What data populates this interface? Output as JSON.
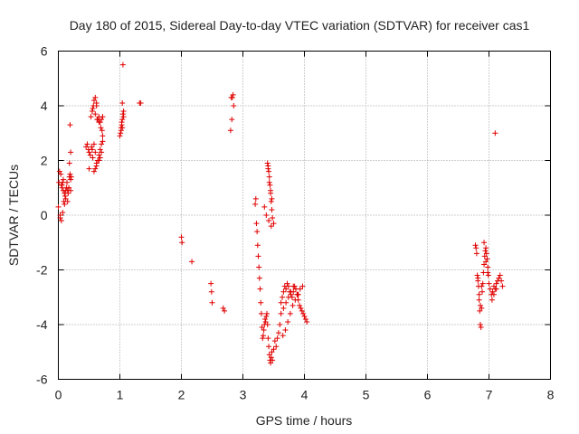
{
  "chart_data": {
    "type": "scatter",
    "title": "Day 180 of 2015, Sidereal Day-to-day VTEC variation (SDTVAR) for receiver cas1",
    "xlabel": "GPS time / hours",
    "ylabel": "SDTVAR / TECUs",
    "xlim": [
      0,
      8
    ],
    "ylim": [
      -6,
      6
    ],
    "x_ticks": [
      "0",
      "1",
      "2",
      "3",
      "4",
      "5",
      "6",
      "7",
      "8"
    ],
    "y_ticks": [
      "-6",
      "-4",
      "-2",
      "0",
      "2",
      "4",
      "6"
    ],
    "grid": true,
    "marker": "+",
    "color": "#e00000",
    "series": [
      {
        "name": "cas1",
        "x": [
          0.0,
          0.01,
          0.02,
          0.03,
          0.04,
          0.05,
          0.06,
          0.06,
          0.07,
          0.08,
          0.09,
          0.1,
          0.03,
          0.05,
          0.08,
          0.1,
          0.11,
          0.12,
          0.13,
          0.14,
          0.15,
          0.16,
          0.17,
          0.18,
          0.19,
          0.2,
          0.07,
          0.12,
          0.15,
          0.18,
          0.2,
          0.19,
          0.21,
          0.17,
          0.2,
          0.45,
          0.47,
          0.49,
          0.5,
          0.52,
          0.54,
          0.55,
          0.56,
          0.58,
          0.6,
          0.62,
          0.5,
          0.53,
          0.55,
          0.57,
          0.6,
          0.62,
          0.64,
          0.66,
          0.68,
          0.7,
          0.72,
          0.58,
          0.6,
          0.62,
          0.64,
          0.66,
          0.68,
          0.7,
          0.72,
          0.6,
          0.63,
          0.66,
          0.69,
          0.71,
          0.66,
          0.68,
          0.7,
          0.72,
          0.58,
          0.62,
          0.56,
          1.0,
          1.01,
          1.02,
          1.03,
          1.04,
          1.05,
          1.06,
          1.02,
          1.04,
          1.05,
          1.06,
          1.03,
          1.32,
          1.34,
          1.04,
          2.0,
          2.01,
          2.17,
          2.48,
          2.49,
          2.5,
          2.68,
          2.7,
          2.8,
          2.82,
          2.83,
          2.84,
          2.85,
          2.81,
          3.2,
          3.21,
          3.22,
          3.23,
          3.24,
          3.25,
          3.26,
          3.27,
          3.28,
          3.29,
          3.3,
          3.31,
          3.32,
          3.33,
          3.34,
          3.35,
          3.36,
          3.37,
          3.38,
          3.39,
          3.4,
          3.41,
          3.42,
          3.43,
          3.44,
          3.45,
          3.46,
          3.47,
          3.48,
          3.5,
          3.52,
          3.54,
          3.56,
          3.58,
          3.6,
          3.62,
          3.4,
          3.41,
          3.42,
          3.43,
          3.44,
          3.45,
          3.46,
          3.47,
          3.48,
          3.5,
          3.41,
          3.43,
          3.45,
          3.47,
          3.35,
          3.38,
          3.42,
          3.46,
          3.62,
          3.64,
          3.66,
          3.68,
          3.7,
          3.72,
          3.74,
          3.76,
          3.78,
          3.8,
          3.82,
          3.84,
          3.86,
          3.88,
          3.9,
          3.92,
          3.94,
          3.96,
          3.98,
          4.0,
          4.02,
          4.04,
          3.66,
          3.7,
          3.74,
          3.78,
          3.82,
          3.86,
          3.9,
          3.65,
          3.69,
          3.73,
          3.77,
          3.81,
          3.85,
          3.89,
          3.93,
          3.97,
          6.78,
          6.79,
          6.8,
          6.81,
          6.82,
          6.83,
          6.84,
          6.85,
          6.86,
          6.87,
          6.88,
          6.89,
          6.9,
          6.91,
          6.92,
          6.93,
          6.94,
          6.95,
          6.96,
          6.97,
          6.98,
          6.99,
          7.0,
          7.02,
          7.04,
          7.06,
          7.08,
          7.1,
          7.12,
          7.14,
          7.16,
          7.18,
          7.2,
          7.22,
          6.82,
          6.84,
          6.86,
          6.88,
          6.92,
          6.95,
          6.98,
          7.05,
          7.08,
          7.12,
          7.1
        ],
        "y": [
          0.3,
          1.2,
          1.6,
          -0.1,
          1.5,
          -0.2,
          1.0,
          1.1,
          0.1,
          1.3,
          0.5,
          0.4,
          0.0,
          1.1,
          0.9,
          0.8,
          0.7,
          0.9,
          1.0,
          1.2,
          0.9,
          0.8,
          1.0,
          1.4,
          1.5,
          1.3,
          1.2,
          0.6,
          0.5,
          1.9,
          2.3,
          3.3,
          1.4,
          1.0,
          0.9,
          2.5,
          2.6,
          2.4,
          2.3,
          2.2,
          2.5,
          2.4,
          2.1,
          2.6,
          2.3,
          1.8,
          1.7,
          3.6,
          3.8,
          4.0,
          4.3,
          4.1,
          3.5,
          3.6,
          3.4,
          3.5,
          3.6,
          1.6,
          1.7,
          1.9,
          2.0,
          2.2,
          2.4,
          2.6,
          2.9,
          3.7,
          3.5,
          3.4,
          3.2,
          3.1,
          2.0,
          2.1,
          2.3,
          2.7,
          4.2,
          4.0,
          3.9,
          2.9,
          3.0,
          3.1,
          3.3,
          3.5,
          3.7,
          3.6,
          3.2,
          4.1,
          5.5,
          3.8,
          3.4,
          4.1,
          4.1,
          3.2,
          -0.8,
          -1.0,
          -1.7,
          -2.5,
          -2.8,
          -3.2,
          -3.4,
          -3.5,
          3.1,
          3.5,
          4.3,
          4.4,
          4.0,
          4.3,
          0.4,
          0.6,
          -0.3,
          -0.6,
          -1.1,
          -1.5,
          -1.9,
          -2.3,
          -2.7,
          -3.2,
          -3.6,
          -4.1,
          -4.5,
          -4.4,
          -4.2,
          -4.0,
          -3.8,
          -3.9,
          -3.7,
          -3.6,
          -4.0,
          -4.5,
          -4.8,
          -5.1,
          -5.3,
          -5.4,
          -5.2,
          -5.0,
          -5.3,
          -4.9,
          -4.6,
          -4.8,
          -4.5,
          -4.3,
          -4.0,
          -3.6,
          1.9,
          1.8,
          1.6,
          1.4,
          1.1,
          0.8,
          0.5,
          0.2,
          -0.1,
          -0.3,
          1.7,
          1.2,
          0.9,
          0.6,
          0.3,
          0.0,
          -0.2,
          -0.4,
          -3.2,
          -3.0,
          -2.8,
          -2.6,
          -2.7,
          -2.5,
          -2.6,
          -2.8,
          -2.9,
          -3.0,
          -2.8,
          -2.6,
          -2.7,
          -2.9,
          -3.1,
          -3.3,
          -3.4,
          -3.5,
          -3.6,
          -3.7,
          -3.8,
          -3.9,
          -3.4,
          -3.2,
          -3.0,
          -2.8,
          -2.6,
          -2.7,
          -2.9,
          -4.4,
          -4.2,
          -3.9,
          -3.6,
          -3.3,
          -3.1,
          -2.9,
          -2.7,
          -2.6,
          -1.1,
          -1.2,
          -1.4,
          -2.2,
          -2.4,
          -2.6,
          -3.1,
          -3.5,
          -4.0,
          -4.1,
          -3.4,
          -2.8,
          -2.5,
          -2.1,
          -1.8,
          -1.5,
          -1.3,
          -1.2,
          -1.4,
          -1.6,
          -1.9,
          -2.2,
          -2.5,
          -2.7,
          -2.9,
          -2.8,
          -2.6,
          -2.7,
          -2.5,
          -2.4,
          -2.3,
          -2.2,
          -2.4,
          -2.6,
          -2.3,
          -2.9,
          -3.3,
          -2.6,
          -1.0,
          -1.7,
          -2.1,
          -3.1,
          -2.9,
          -2.7,
          3.0
        ]
      }
    ]
  }
}
